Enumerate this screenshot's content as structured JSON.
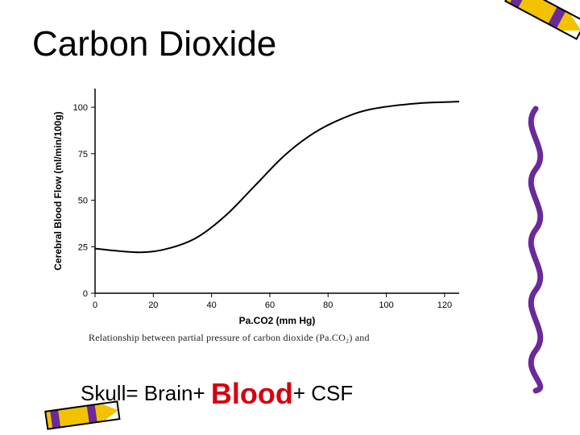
{
  "title": "Carbon Dioxide",
  "chart": {
    "type": "line",
    "xlabel": "Pa.CO2 (mm Hg)",
    "ylabel": "Cerebral Blood Flow (ml/min/100g)",
    "xlim": [
      0,
      125
    ],
    "ylim": [
      0,
      110
    ],
    "xticks": [
      0,
      20,
      40,
      60,
      80,
      100,
      120
    ],
    "yticks": [
      0,
      25,
      50,
      75,
      100
    ],
    "line_color": "#000000",
    "line_width": 2,
    "axis_color": "#000000",
    "background_color": "#ffffff",
    "label_fontsize": 12,
    "tick_fontsize": 11,
    "points": [
      {
        "x": 0,
        "y": 24
      },
      {
        "x": 15,
        "y": 22
      },
      {
        "x": 25,
        "y": 24
      },
      {
        "x": 35,
        "y": 30
      },
      {
        "x": 45,
        "y": 42
      },
      {
        "x": 55,
        "y": 58
      },
      {
        "x": 65,
        "y": 74
      },
      {
        "x": 75,
        "y": 86
      },
      {
        "x": 85,
        "y": 94
      },
      {
        "x": 95,
        "y": 99
      },
      {
        "x": 110,
        "y": 102
      },
      {
        "x": 125,
        "y": 103
      }
    ]
  },
  "caption_fragment": "Relationship between partial pressure of carbon dioxide (Pa.CO₂) and",
  "footer": {
    "prefix": "Skull= Brain+ ",
    "accent": "Blood",
    "suffix": "+ CSF",
    "accent_color": "#d4000f"
  },
  "decor": {
    "crayon_body": "#f2c200",
    "crayon_band": "#6a2a9a",
    "crayon_stroke": "#000000",
    "squiggle_color": "#6a2a9a"
  }
}
